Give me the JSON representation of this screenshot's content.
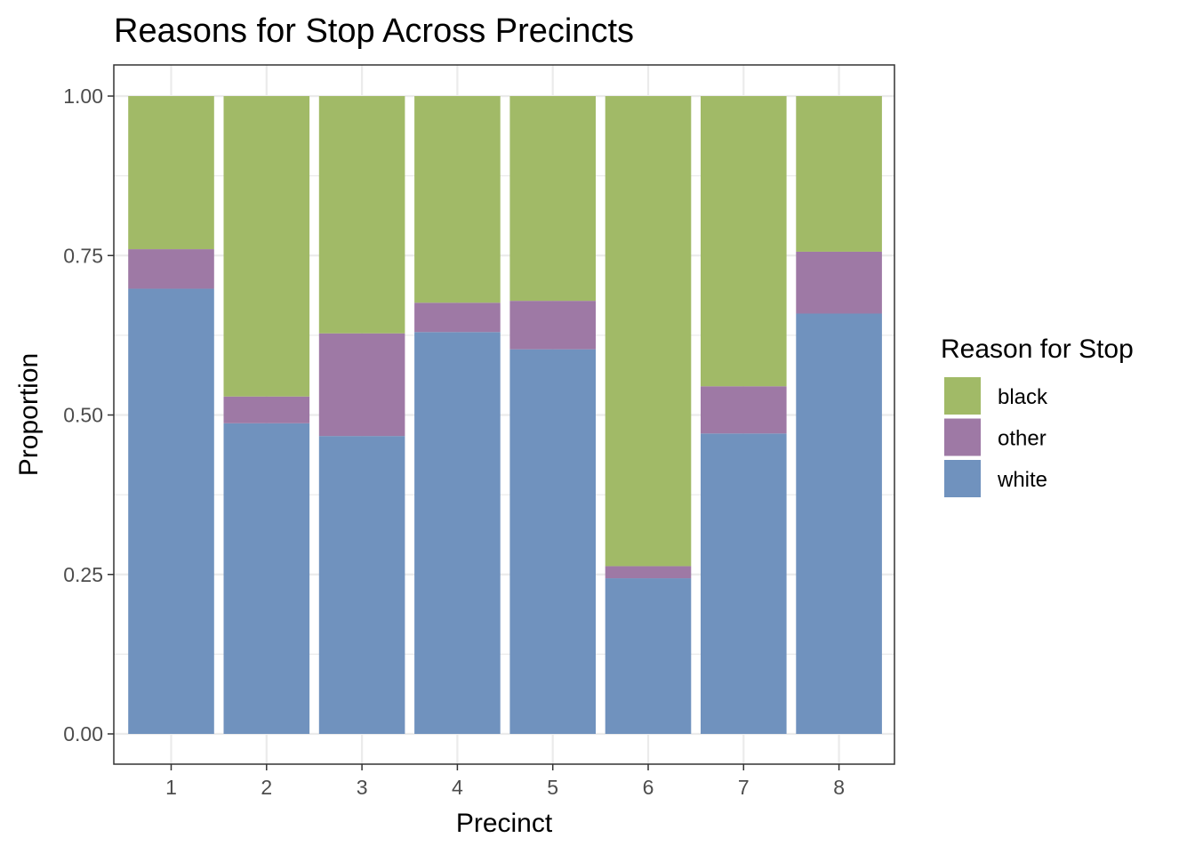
{
  "chart_data": {
    "type": "bar",
    "stacked": true,
    "title": "Reasons for Stop Across Precincts",
    "xlabel": "Precinct",
    "ylabel": "Proportion",
    "categories": [
      "1",
      "2",
      "3",
      "4",
      "5",
      "6",
      "7",
      "8"
    ],
    "series": [
      {
        "name": "white",
        "color": "#7092be",
        "values": [
          0.698,
          0.487,
          0.467,
          0.63,
          0.603,
          0.244,
          0.471,
          0.659
        ]
      },
      {
        "name": "other",
        "color": "#9e79a5",
        "values": [
          0.062,
          0.042,
          0.161,
          0.046,
          0.076,
          0.019,
          0.074,
          0.097
        ]
      },
      {
        "name": "black",
        "color": "#a1ba67",
        "values": [
          0.24,
          0.471,
          0.372,
          0.324,
          0.321,
          0.737,
          0.455,
          0.244
        ]
      }
    ],
    "ylim": [
      0,
      1
    ],
    "yticks": [
      "0.00",
      "0.25",
      "0.50",
      "0.75",
      "1.00"
    ],
    "ytick_values": [
      0,
      0.25,
      0.5,
      0.75,
      1
    ],
    "legend": {
      "title": "Reason for Stop",
      "placement": "right",
      "entries": [
        "black",
        "other",
        "white"
      ]
    },
    "grid": true
  }
}
